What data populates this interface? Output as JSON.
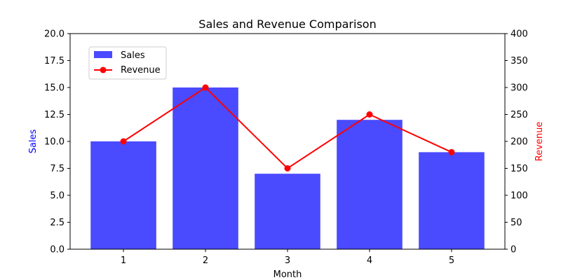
{
  "chart_data": {
    "type": "bar+line",
    "title": "Sales and Revenue Comparison",
    "xlabel": "Month",
    "categories": [
      "1",
      "2",
      "3",
      "4",
      "5"
    ],
    "series": [
      {
        "name": "Sales",
        "kind": "bar",
        "axis": "left",
        "color": "#4a4aff",
        "values": [
          10,
          15,
          7,
          12,
          9
        ]
      },
      {
        "name": "Revenue",
        "kind": "line",
        "axis": "right",
        "color": "#ff0000",
        "values": [
          200,
          300,
          150,
          250,
          180
        ]
      }
    ],
    "left_axis": {
      "label": "Sales",
      "label_color": "#0000ff",
      "ylim": [
        0,
        20
      ],
      "ticks": [
        "0.0",
        "2.5",
        "5.0",
        "7.5",
        "10.0",
        "12.5",
        "15.0",
        "17.5",
        "20.0"
      ]
    },
    "right_axis": {
      "label": "Revenue",
      "label_color": "#ff0000",
      "ylim": [
        0,
        400
      ],
      "ticks": [
        "0",
        "50",
        "100",
        "150",
        "200",
        "250",
        "300",
        "350",
        "400"
      ]
    },
    "legend": {
      "placement": "upper-left",
      "entries": [
        "Sales",
        "Revenue"
      ]
    },
    "grid": false
  }
}
